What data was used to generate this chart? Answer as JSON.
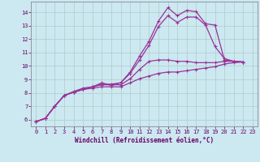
{
  "background_color": "#cce8f0",
  "grid_color": "#b0ccc8",
  "line_color": "#993399",
  "marker": "+",
  "marker_size": 3,
  "linewidth": 0.9,
  "xlabel": "Windchill (Refroidissement éolien,°C)",
  "xlabel_fontsize": 5.5,
  "tick_fontsize": 5.0,
  "xlim": [
    -0.5,
    23.5
  ],
  "ylim": [
    5.5,
    14.8
  ],
  "xticks": [
    0,
    1,
    2,
    3,
    4,
    5,
    6,
    7,
    8,
    9,
    10,
    11,
    12,
    13,
    14,
    15,
    16,
    17,
    18,
    19,
    20,
    21,
    22,
    23
  ],
  "yticks": [
    6,
    7,
    8,
    9,
    10,
    11,
    12,
    13,
    14
  ],
  "series": [
    [
      5.85,
      6.1,
      7.0,
      7.8,
      8.1,
      8.35,
      8.45,
      8.75,
      8.55,
      8.75,
      9.55,
      10.75,
      11.85,
      13.35,
      14.35,
      13.75,
      14.15,
      14.05,
      13.15,
      13.05,
      10.45,
      10.35,
      10.3
    ],
    [
      5.85,
      6.1,
      7.0,
      7.8,
      8.05,
      8.25,
      8.45,
      8.65,
      8.65,
      8.75,
      9.45,
      10.45,
      11.55,
      12.95,
      13.75,
      13.25,
      13.65,
      13.65,
      13.05,
      11.45,
      10.55,
      10.35,
      10.3
    ],
    [
      5.85,
      6.1,
      7.0,
      7.8,
      8.05,
      8.25,
      8.45,
      8.6,
      8.6,
      8.6,
      9.05,
      9.75,
      10.35,
      10.45,
      10.45,
      10.35,
      10.35,
      10.25,
      10.25,
      10.25,
      10.35,
      10.35,
      10.3
    ],
    [
      5.85,
      6.1,
      7.0,
      7.8,
      8.05,
      8.25,
      8.35,
      8.45,
      8.45,
      8.45,
      8.75,
      9.05,
      9.25,
      9.45,
      9.55,
      9.55,
      9.65,
      9.75,
      9.85,
      9.95,
      10.15,
      10.25,
      10.3
    ]
  ]
}
